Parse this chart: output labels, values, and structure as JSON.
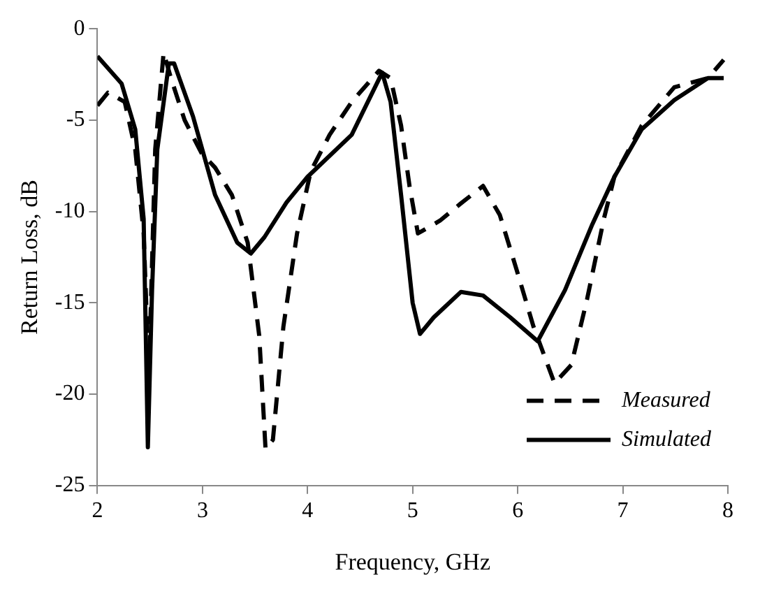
{
  "chart_data": {
    "type": "line",
    "xlabel": "Frequency, GHz",
    "ylabel": "Return Loss, dB",
    "xlim": [
      2,
      8
    ],
    "xticks": [
      2,
      3,
      4,
      5,
      6,
      7,
      8
    ],
    "ylim": [
      -25,
      0
    ],
    "yticks": [
      -25,
      -20,
      -15,
      -10,
      -5,
      0
    ],
    "grid": false,
    "legend": "bottom right",
    "series": [
      {
        "name": "Measured",
        "color": "#000000",
        "line_style": "dashed",
        "x": [
          2.0,
          2.1,
          2.26,
          2.36,
          2.44,
          2.49,
          2.55,
          2.63,
          2.7,
          2.83,
          2.99,
          3.12,
          3.28,
          3.43,
          3.54,
          3.6,
          3.67,
          3.77,
          3.9,
          4.03,
          4.21,
          4.42,
          4.68,
          4.79,
          4.89,
          4.97,
          5.05,
          5.26,
          5.45,
          5.67,
          5.83,
          5.99,
          6.15,
          6.35,
          6.51,
          6.66,
          6.82,
          6.92,
          7.18,
          7.49,
          7.81,
          7.96
        ],
        "values": [
          -4.2,
          -3.5,
          -4.0,
          -6.6,
          -11.2,
          -19,
          -6.6,
          -1.3,
          -2.7,
          -5.0,
          -6.8,
          -7.6,
          -9.1,
          -11.7,
          -16.8,
          -23.0,
          -22.5,
          -16.3,
          -11.2,
          -7.8,
          -5.8,
          -4.0,
          -2.3,
          -2.7,
          -5.3,
          -8.6,
          -11.2,
          -10.5,
          -9.6,
          -8.6,
          -10.2,
          -13.2,
          -16.3,
          -19.4,
          -18.4,
          -14.8,
          -10.4,
          -8.1,
          -5.3,
          -3.2,
          -2.7,
          -1.7
        ]
      },
      {
        "name": "Simulated",
        "color": "#000000",
        "line_style": "solid",
        "x": [
          2.0,
          2.23,
          2.36,
          2.44,
          2.48,
          2.52,
          2.57,
          2.68,
          2.73,
          2.91,
          3.12,
          3.33,
          3.46,
          3.59,
          3.8,
          4.0,
          4.42,
          4.71,
          4.79,
          4.89,
          5.0,
          5.07,
          5.2,
          5.46,
          5.67,
          5.93,
          6.19,
          6.45,
          6.71,
          6.92,
          7.18,
          7.49,
          7.81,
          7.96
        ],
        "values": [
          -1.5,
          -3.0,
          -5.5,
          -10.4,
          -22.9,
          -14.3,
          -6.6,
          -1.9,
          -1.9,
          -4.8,
          -9.1,
          -11.7,
          -12.3,
          -11.4,
          -9.5,
          -8.1,
          -5.8,
          -2.4,
          -4.0,
          -9.1,
          -15.0,
          -16.7,
          -15.8,
          -14.4,
          -14.6,
          -15.8,
          -17.1,
          -14.3,
          -10.7,
          -8.1,
          -5.5,
          -3.9,
          -2.7,
          -2.7
        ]
      }
    ]
  }
}
